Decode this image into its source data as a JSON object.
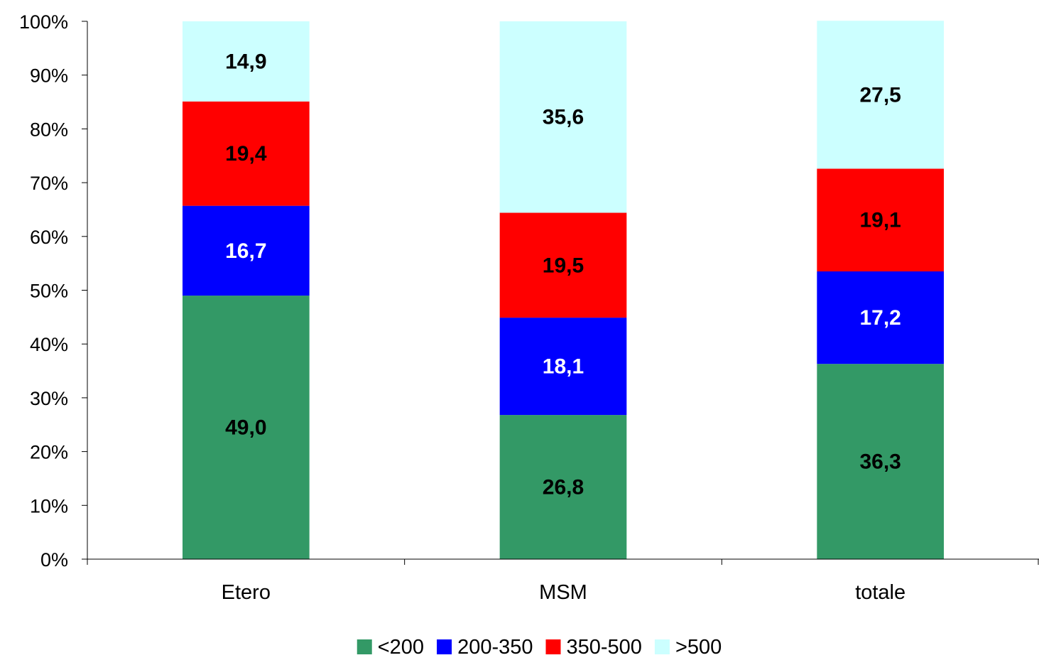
{
  "chart_data": {
    "type": "bar",
    "stacked": true,
    "percent": true,
    "categories": [
      "Etero",
      "MSM",
      "totale"
    ],
    "series": [
      {
        "name": "<200",
        "values": [
          49.0,
          26.8,
          36.3
        ],
        "labels": [
          "49,0",
          "26,8",
          "36,3"
        ],
        "color": "#339966",
        "label_color": "#000000"
      },
      {
        "name": "200-350",
        "values": [
          16.7,
          18.1,
          17.2
        ],
        "labels": [
          "16,7",
          "18,1",
          "17,2"
        ],
        "color": "#0000FF",
        "label_color": "#FFFFFF"
      },
      {
        "name": "350-500",
        "values": [
          19.4,
          19.5,
          19.1
        ],
        "labels": [
          "19,4",
          "19,5",
          "19,1"
        ],
        "color": "#FF0000",
        "label_color": "#000000"
      },
      {
        "name": ">500",
        "values": [
          14.9,
          35.6,
          27.5
        ],
        "labels": [
          "14,9",
          "35,6",
          "27,5"
        ],
        "color": "#CCFFFF",
        "label_color": "#000000"
      }
    ],
    "y_ticks": [
      "0%",
      "10%",
      "20%",
      "30%",
      "40%",
      "50%",
      "60%",
      "70%",
      "80%",
      "90%",
      "100%"
    ],
    "ylim": [
      0,
      100
    ],
    "grid": false,
    "legend": "bottom",
    "title": "",
    "xlabel": "",
    "ylabel": ""
  }
}
